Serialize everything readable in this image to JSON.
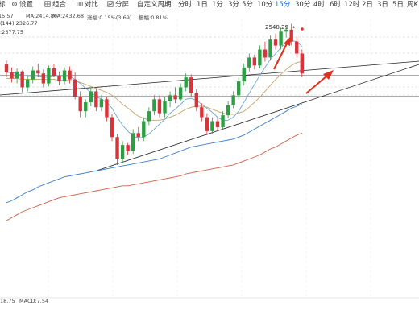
{
  "toolbar": {
    "truncated_label": "标",
    "settings": "设置",
    "combo": "组合",
    "compare": "对比",
    "time_share": "分屏",
    "custom_period": "自定义周期",
    "timeframes": [
      "分时",
      "1日",
      "1分",
      "3分",
      "5分",
      "10分",
      "15分",
      "30分",
      "4时",
      "6时",
      "12时",
      "2日",
      "3日",
      "5日",
      "周K"
    ],
    "active_timeframe": "15分"
  },
  "chart_data": {
    "type": "candlestick",
    "title": "",
    "xlabel": "",
    "ylabel": "",
    "ylim": [
      2120,
      2400
    ],
    "ma_readout": [
      "15.57",
      "MA:2414.80",
      "MA:2432.68",
      "涨幅:0.15%(3.69)",
      "振幅:0.81%"
    ],
    "ma144_readout": "(144):2326.77",
    "ma_third_readout": ":2377.75",
    "peak_label": "2548.29 →",
    "colors": {
      "up": "#2e9e44",
      "down": "#d8343a",
      "ma_short": "#6da8d6",
      "ma_mid": "#c8a46a",
      "ma_long_blue": "#3c7fd0",
      "ma_long_red": "#d0604a",
      "trend": "#222222",
      "arrow": "#e03020"
    },
    "candles": [
      {
        "o": 2353,
        "h": 2357,
        "l": 2340,
        "c": 2345
      },
      {
        "o": 2345,
        "h": 2350,
        "l": 2335,
        "c": 2339
      },
      {
        "o": 2339,
        "h": 2349,
        "l": 2334,
        "c": 2346
      },
      {
        "o": 2346,
        "h": 2347,
        "l": 2325,
        "c": 2330
      },
      {
        "o": 2330,
        "h": 2341,
        "l": 2326,
        "c": 2338
      },
      {
        "o": 2338,
        "h": 2351,
        "l": 2334,
        "c": 2347
      },
      {
        "o": 2347,
        "h": 2354,
        "l": 2340,
        "c": 2344
      },
      {
        "o": 2344,
        "h": 2348,
        "l": 2330,
        "c": 2334
      },
      {
        "o": 2334,
        "h": 2352,
        "l": 2331,
        "c": 2349
      },
      {
        "o": 2349,
        "h": 2353,
        "l": 2340,
        "c": 2342
      },
      {
        "o": 2342,
        "h": 2346,
        "l": 2332,
        "c": 2336
      },
      {
        "o": 2336,
        "h": 2350,
        "l": 2333,
        "c": 2347
      },
      {
        "o": 2347,
        "h": 2351,
        "l": 2334,
        "c": 2338
      },
      {
        "o": 2338,
        "h": 2345,
        "l": 2318,
        "c": 2321
      },
      {
        "o": 2321,
        "h": 2326,
        "l": 2300,
        "c": 2306
      },
      {
        "o": 2306,
        "h": 2318,
        "l": 2300,
        "c": 2315
      },
      {
        "o": 2315,
        "h": 2330,
        "l": 2311,
        "c": 2326
      },
      {
        "o": 2326,
        "h": 2329,
        "l": 2306,
        "c": 2310
      },
      {
        "o": 2310,
        "h": 2322,
        "l": 2306,
        "c": 2318
      },
      {
        "o": 2318,
        "h": 2320,
        "l": 2296,
        "c": 2300
      },
      {
        "o": 2300,
        "h": 2303,
        "l": 2276,
        "c": 2280
      },
      {
        "o": 2280,
        "h": 2283,
        "l": 2252,
        "c": 2258
      },
      {
        "o": 2258,
        "h": 2276,
        "l": 2254,
        "c": 2272
      },
      {
        "o": 2272,
        "h": 2274,
        "l": 2262,
        "c": 2266
      },
      {
        "o": 2266,
        "h": 2288,
        "l": 2263,
        "c": 2284
      },
      {
        "o": 2284,
        "h": 2290,
        "l": 2276,
        "c": 2280
      },
      {
        "o": 2280,
        "h": 2300,
        "l": 2276,
        "c": 2296
      },
      {
        "o": 2296,
        "h": 2310,
        "l": 2292,
        "c": 2306
      },
      {
        "o": 2306,
        "h": 2322,
        "l": 2302,
        "c": 2318
      },
      {
        "o": 2318,
        "h": 2322,
        "l": 2300,
        "c": 2304
      },
      {
        "o": 2304,
        "h": 2320,
        "l": 2300,
        "c": 2316
      },
      {
        "o": 2316,
        "h": 2326,
        "l": 2310,
        "c": 2322
      },
      {
        "o": 2322,
        "h": 2330,
        "l": 2314,
        "c": 2318
      },
      {
        "o": 2318,
        "h": 2334,
        "l": 2316,
        "c": 2330
      },
      {
        "o": 2330,
        "h": 2344,
        "l": 2326,
        "c": 2340
      },
      {
        "o": 2340,
        "h": 2343,
        "l": 2320,
        "c": 2324
      },
      {
        "o": 2324,
        "h": 2328,
        "l": 2306,
        "c": 2310
      },
      {
        "o": 2310,
        "h": 2314,
        "l": 2296,
        "c": 2300
      },
      {
        "o": 2300,
        "h": 2304,
        "l": 2282,
        "c": 2286
      },
      {
        "o": 2286,
        "h": 2300,
        "l": 2283,
        "c": 2296
      },
      {
        "o": 2296,
        "h": 2299,
        "l": 2286,
        "c": 2290
      },
      {
        "o": 2290,
        "h": 2306,
        "l": 2288,
        "c": 2302
      },
      {
        "o": 2302,
        "h": 2316,
        "l": 2299,
        "c": 2312
      },
      {
        "o": 2312,
        "h": 2326,
        "l": 2309,
        "c": 2322
      },
      {
        "o": 2322,
        "h": 2340,
        "l": 2318,
        "c": 2336
      },
      {
        "o": 2336,
        "h": 2354,
        "l": 2332,
        "c": 2350
      },
      {
        "o": 2350,
        "h": 2364,
        "l": 2346,
        "c": 2360
      },
      {
        "o": 2360,
        "h": 2363,
        "l": 2348,
        "c": 2352
      },
      {
        "o": 2352,
        "h": 2372,
        "l": 2349,
        "c": 2368
      },
      {
        "o": 2368,
        "h": 2376,
        "l": 2356,
        "c": 2360
      },
      {
        "o": 2360,
        "h": 2382,
        "l": 2357,
        "c": 2378
      },
      {
        "o": 2378,
        "h": 2384,
        "l": 2368,
        "c": 2372
      },
      {
        "o": 2372,
        "h": 2390,
        "l": 2368,
        "c": 2386
      },
      {
        "o": 2386,
        "h": 2392,
        "l": 2380,
        "c": 2388
      },
      {
        "o": 2388,
        "h": 2394,
        "l": 2372,
        "c": 2376
      },
      {
        "o": 2376,
        "h": 2381,
        "l": 2360,
        "c": 2364
      },
      {
        "o": 2364,
        "h": 2368,
        "l": 2340,
        "c": 2344
      }
    ],
    "ma_short": [
      2345,
      2345,
      2344,
      2342,
      2341,
      2341,
      2341,
      2340,
      2340,
      2341,
      2341,
      2341,
      2341,
      2338,
      2334,
      2329,
      2325,
      2321,
      2318,
      2315,
      2309,
      2300,
      2292,
      2286,
      2281,
      2279,
      2280,
      2283,
      2288,
      2293,
      2298,
      2304,
      2308,
      2313,
      2318,
      2319,
      2317,
      2313,
      2309,
      2305,
      2300,
      2297,
      2297,
      2300,
      2306,
      2315,
      2324,
      2333,
      2342,
      2350,
      2358,
      2364,
      2370,
      2375,
      2377,
      2376,
      2371
    ],
    "ma_mid": [
      2339,
      2339,
      2339,
      2338,
      2338,
      2338,
      2338,
      2338,
      2338,
      2338,
      2337,
      2337,
      2337,
      2336,
      2335,
      2333,
      2331,
      2329,
      2327,
      2325,
      2322,
      2318,
      2313,
      2309,
      2305,
      2301,
      2299,
      2297,
      2297,
      2297,
      2298,
      2300,
      2302,
      2305,
      2308,
      2310,
      2311,
      2311,
      2310,
      2308,
      2306,
      2304,
      2303,
      2303,
      2304,
      2306,
      2310,
      2315,
      2320,
      2326,
      2332,
      2338,
      2343,
      2348,
      2352,
      2355,
      2356
    ],
    "ma_long_blue": [
      2214,
      2216,
      2219,
      2222,
      2225,
      2227,
      2230,
      2232,
      2234,
      2236,
      2238,
      2240,
      2241,
      2242,
      2243,
      2244,
      2245,
      2246,
      2247,
      2248,
      2249,
      2250,
      2251,
      2252,
      2253,
      2254,
      2255,
      2256,
      2257,
      2258,
      2260,
      2262,
      2264,
      2266,
      2268,
      2270,
      2271,
      2272,
      2273,
      2274,
      2275,
      2276,
      2277,
      2278,
      2280,
      2282,
      2285,
      2288,
      2291,
      2294,
      2297,
      2300,
      2303,
      2306,
      2309,
      2311,
      2313
    ],
    "ma_long_red": [
      2196,
      2199,
      2202,
      2205,
      2207,
      2209,
      2211,
      2213,
      2215,
      2217,
      2219,
      2220,
      2221,
      2222,
      2223,
      2224,
      2225,
      2226,
      2227,
      2228,
      2229,
      2230,
      2231,
      2231,
      2232,
      2233,
      2234,
      2235,
      2236,
      2237,
      2238,
      2239,
      2240,
      2241,
      2243,
      2244,
      2245,
      2246,
      2247,
      2248,
      2249,
      2250,
      2251,
      2252,
      2254,
      2256,
      2258,
      2260,
      2262,
      2265,
      2268,
      2270,
      2273,
      2276,
      2279,
      2282,
      2284
    ],
    "macd": {
      "left_value": "18.75",
      "readout": "MACD:7.54"
    }
  }
}
